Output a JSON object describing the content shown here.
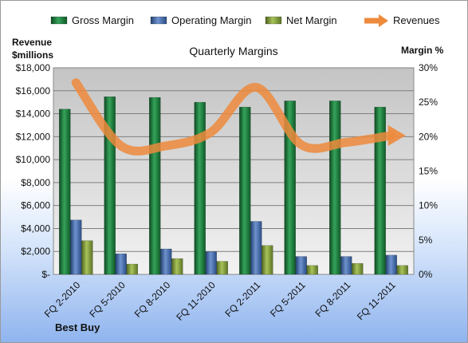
{
  "chart_data": {
    "type": "bar",
    "title": "Quarterly Margins",
    "company": "Best Buy",
    "left_axis_title": [
      "Revenue",
      "$millions"
    ],
    "right_axis_title": "Margin %",
    "categories": [
      "FQ 2-2010",
      "FQ 5-2010",
      "FQ 8-2010",
      "FQ 11-2010",
      "FQ 2-2011",
      "FQ 5-2011",
      "FQ 8-2011",
      "FQ 11-2011"
    ],
    "left_ticks": [
      "$-",
      "$2,000",
      "$4,000",
      "$6,000",
      "$8,000",
      "$10,000",
      "$12,000",
      "$14,000",
      "$16,000",
      "$18,000"
    ],
    "right_ticks": [
      "0%",
      "5%",
      "10%",
      "15%",
      "20%",
      "25%",
      "30%"
    ],
    "ylim_left": [
      0,
      18000
    ],
    "ylim_right": [
      0,
      30
    ],
    "grid": true,
    "legend_position": "top",
    "series": [
      {
        "name": "Gross Margin",
        "kind": "bar",
        "axis": "right",
        "color": "#1f7a3c",
        "values": [
          24.0,
          25.8,
          25.7,
          25.0,
          24.3,
          25.2,
          25.2,
          24.3
        ]
      },
      {
        "name": "Operating Margin",
        "kind": "bar",
        "axis": "right",
        "color": "#3f66a8",
        "values": [
          7.9,
          3.0,
          3.7,
          3.3,
          7.7,
          2.6,
          2.6,
          2.8
        ]
      },
      {
        "name": "Net Margin",
        "kind": "bar",
        "axis": "right",
        "color": "#7f9a3c",
        "values": [
          4.9,
          1.5,
          2.3,
          1.9,
          4.2,
          1.3,
          1.6,
          1.3
        ]
      },
      {
        "name": "Revenues",
        "kind": "line",
        "axis": "left",
        "color": "#ed8a3c",
        "values": [
          16700,
          11200,
          11200,
          12400,
          16300,
          11300,
          11500,
          12100
        ]
      }
    ]
  }
}
